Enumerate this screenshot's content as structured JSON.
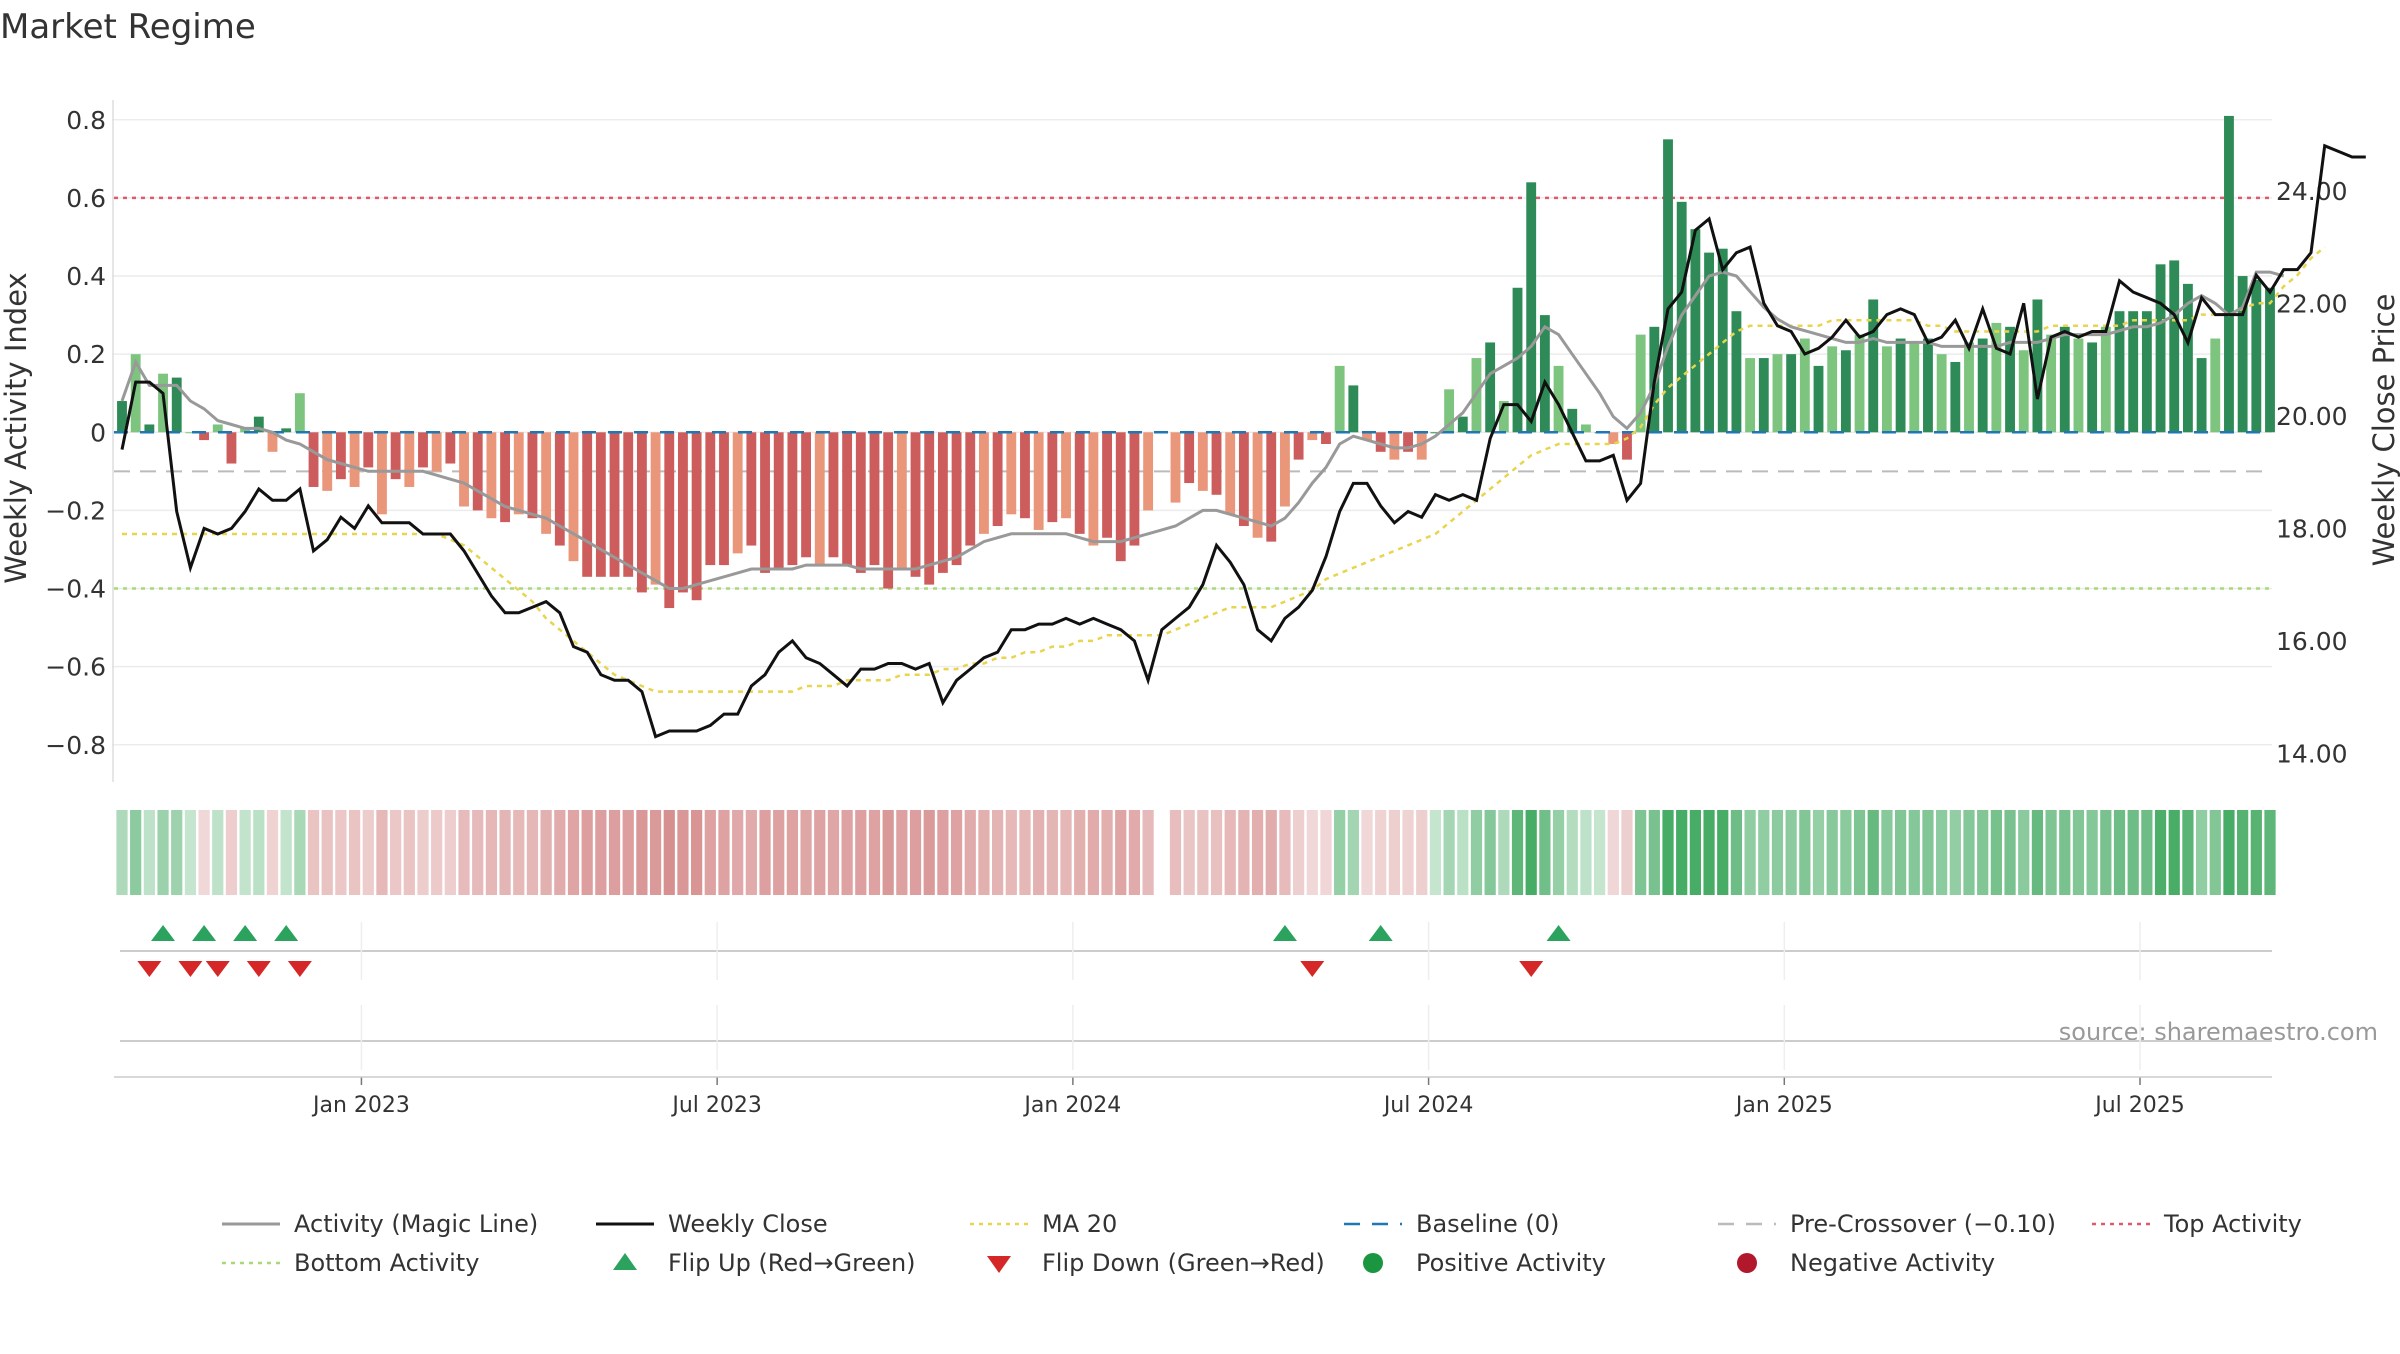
{
  "chart_data": {
    "type": "bar",
    "title": "Market Regime",
    "source": "source: sharemaestro.com",
    "left_axis": {
      "label": "Weekly Activity Index",
      "ylim": [
        -0.88,
        0.82
      ],
      "ticks": [
        0.8,
        0.6,
        0.4,
        0.2,
        0,
        -0.2,
        -0.4,
        -0.6,
        -0.8
      ],
      "tick_labels": [
        "0.8",
        "0.6",
        "0.4",
        "0.2",
        "0",
        "−0.2",
        "−0.4",
        "−0.6",
        "−0.8"
      ]
    },
    "right_axis": {
      "label": "Weekly Close Price",
      "ylim": [
        13.6,
        25.4
      ],
      "ticks": [
        24,
        22,
        20,
        18,
        16,
        14
      ],
      "tick_labels": [
        "24.00",
        "22.00",
        "20.00",
        "18.00",
        "16.00",
        "14.00"
      ]
    },
    "x_axis": {
      "ticks": [
        {
          "label": "Jan 2023",
          "week": 17.5
        },
        {
          "label": "Jul 2023",
          "week": 43.5
        },
        {
          "label": "Jan 2024",
          "week": 69.5
        },
        {
          "label": "Jul 2024",
          "week": 95.5
        },
        {
          "label": "Jan 2025",
          "week": 121.5
        },
        {
          "label": "Jul 2025",
          "week": 147.5
        }
      ]
    },
    "thresholds": {
      "baseline": 0,
      "pre_crossover": -0.1,
      "top": 0.6,
      "bottom": -0.4
    },
    "activity": [
      0.08,
      0.2,
      0.02,
      0.15,
      0.14,
      0.0,
      -0.02,
      0.02,
      -0.08,
      0.01,
      0.04,
      -0.05,
      0.01,
      0.1,
      -0.14,
      -0.15,
      -0.12,
      -0.14,
      -0.09,
      -0.21,
      -0.12,
      -0.14,
      -0.09,
      -0.1,
      -0.08,
      -0.19,
      -0.2,
      -0.22,
      -0.23,
      -0.21,
      -0.22,
      -0.26,
      -0.29,
      -0.33,
      -0.37,
      -0.37,
      -0.37,
      -0.37,
      -0.41,
      -0.39,
      -0.45,
      -0.41,
      -0.43,
      -0.34,
      -0.34,
      -0.31,
      -0.29,
      -0.36,
      -0.35,
      -0.34,
      -0.32,
      -0.34,
      -0.32,
      -0.34,
      -0.36,
      -0.34,
      -0.4,
      -0.35,
      -0.37,
      -0.39,
      -0.36,
      -0.34,
      -0.29,
      -0.26,
      -0.24,
      -0.21,
      -0.22,
      -0.25,
      -0.23,
      -0.22,
      -0.26,
      -0.29,
      -0.27,
      -0.33,
      -0.29,
      -0.2,
      null,
      -0.18,
      -0.13,
      -0.15,
      -0.16,
      -0.21,
      -0.24,
      -0.27,
      -0.28,
      -0.19,
      -0.07,
      -0.02,
      -0.03,
      0.17,
      0.12,
      -0.02,
      -0.05,
      -0.07,
      -0.05,
      -0.07,
      0.0,
      0.11,
      0.04,
      0.19,
      0.23,
      0.08,
      0.37,
      0.64,
      0.3,
      0.17,
      0.06,
      0.02,
      0.0,
      -0.03,
      -0.07,
      0.25,
      0.27,
      0.75,
      0.59,
      0.52,
      0.46,
      0.47,
      0.31,
      0.19,
      0.19,
      0.2,
      0.2,
      0.24,
      0.17,
      0.22,
      0.21,
      0.25,
      0.34,
      0.22,
      0.24,
      0.23,
      0.24,
      0.2,
      0.18,
      0.23,
      0.24,
      0.28,
      0.27,
      0.21,
      0.34,
      0.25,
      0.27,
      0.24,
      0.23,
      0.27,
      0.31,
      0.31,
      0.31,
      0.43,
      0.44,
      0.38,
      0.19,
      0.24,
      0.81,
      0.4,
      0.39,
      0.37
    ],
    "magic_line": [
      0.08,
      0.18,
      0.12,
      0.12,
      0.12,
      0.08,
      0.06,
      0.03,
      0.02,
      0.01,
      0.01,
      0.0,
      -0.02,
      -0.03,
      -0.05,
      -0.07,
      -0.08,
      -0.09,
      -0.1,
      -0.1,
      -0.1,
      -0.1,
      -0.1,
      -0.11,
      -0.12,
      -0.13,
      -0.15,
      -0.17,
      -0.19,
      -0.2,
      -0.21,
      -0.22,
      -0.24,
      -0.26,
      -0.28,
      -0.3,
      -0.32,
      -0.34,
      -0.36,
      -0.38,
      -0.4,
      -0.4,
      -0.39,
      -0.38,
      -0.37,
      -0.36,
      -0.35,
      -0.35,
      -0.35,
      -0.35,
      -0.34,
      -0.34,
      -0.34,
      -0.34,
      -0.35,
      -0.35,
      -0.35,
      -0.35,
      -0.35,
      -0.34,
      -0.33,
      -0.32,
      -0.3,
      -0.28,
      -0.27,
      -0.26,
      -0.26,
      -0.26,
      -0.26,
      -0.26,
      -0.27,
      -0.28,
      -0.28,
      -0.28,
      -0.27,
      -0.26,
      -0.25,
      -0.24,
      -0.22,
      -0.2,
      -0.2,
      -0.21,
      -0.22,
      -0.23,
      -0.24,
      -0.22,
      -0.18,
      -0.13,
      -0.09,
      -0.03,
      -0.01,
      -0.02,
      -0.03,
      -0.04,
      -0.04,
      -0.03,
      -0.01,
      0.02,
      0.05,
      0.1,
      0.15,
      0.17,
      0.19,
      0.22,
      0.27,
      0.25,
      0.2,
      0.15,
      0.1,
      0.04,
      0.01,
      0.05,
      0.12,
      0.22,
      0.3,
      0.35,
      0.4,
      0.41,
      0.4,
      0.36,
      0.32,
      0.29,
      0.27,
      0.26,
      0.25,
      0.24,
      0.23,
      0.23,
      0.24,
      0.23,
      0.23,
      0.23,
      0.23,
      0.22,
      0.22,
      0.22,
      0.22,
      0.22,
      0.23,
      0.23,
      0.23,
      0.24,
      0.25,
      0.25,
      0.25,
      0.25,
      0.26,
      0.27,
      0.27,
      0.28,
      0.3,
      0.33,
      0.35,
      0.33,
      0.3,
      0.32,
      0.41,
      0.41,
      0.4
    ],
    "close": [
      19.4,
      20.6,
      20.6,
      20.4,
      18.3,
      17.3,
      18.0,
      17.9,
      18.0,
      18.3,
      18.7,
      18.5,
      18.5,
      18.7,
      17.6,
      17.8,
      18.2,
      18.0,
      18.4,
      18.1,
      18.1,
      18.1,
      17.9,
      17.9,
      17.9,
      17.6,
      17.2,
      16.8,
      16.5,
      16.5,
      16.6,
      16.7,
      16.5,
      15.9,
      15.8,
      15.4,
      15.3,
      15.3,
      15.1,
      14.3,
      14.4,
      14.4,
      14.4,
      14.5,
      14.7,
      14.7,
      15.2,
      15.4,
      15.8,
      16.0,
      15.7,
      15.6,
      15.4,
      15.2,
      15.5,
      15.5,
      15.6,
      15.6,
      15.5,
      15.6,
      14.9,
      15.3,
      15.5,
      15.7,
      15.8,
      16.2,
      16.2,
      16.3,
      16.3,
      16.4,
      16.3,
      16.4,
      16.3,
      16.2,
      16.0,
      15.3,
      16.2,
      16.4,
      16.6,
      17.0,
      17.7,
      17.4,
      17.0,
      16.2,
      16.0,
      16.4,
      16.6,
      16.9,
      17.5,
      18.3,
      18.8,
      18.8,
      18.4,
      18.1,
      18.3,
      18.2,
      18.6,
      18.5,
      18.6,
      18.5,
      19.6,
      20.2,
      20.2,
      19.9,
      20.6,
      20.2,
      19.7,
      19.2,
      19.2,
      19.3,
      18.5,
      18.8,
      20.6,
      21.9,
      22.2,
      23.3,
      23.5,
      22.6,
      22.9,
      23.0,
      22.0,
      21.6,
      21.5,
      21.1,
      21.2,
      21.4,
      21.7,
      21.4,
      21.5,
      21.8,
      21.9,
      21.8,
      21.3,
      21.4,
      21.7,
      21.2,
      21.9,
      21.2,
      21.1,
      22.0,
      20.3,
      21.4,
      21.5,
      21.4,
      21.5,
      21.5,
      22.4,
      22.2,
      22.1,
      22.0,
      21.8,
      21.3,
      22.1,
      21.8,
      21.8,
      21.8,
      22.5,
      22.2,
      22.6,
      22.6,
      22.9,
      24.8,
      24.7,
      24.6,
      24.6
    ],
    "ma20": [
      17.9,
      17.9,
      17.9,
      17.9,
      17.9,
      17.9,
      17.9,
      17.9,
      17.9,
      17.9,
      17.9,
      17.9,
      17.9,
      17.9,
      17.9,
      17.9,
      17.9,
      17.9,
      17.9,
      17.9,
      17.9,
      17.9,
      17.9,
      17.9,
      17.8,
      17.7,
      17.5,
      17.3,
      17.1,
      16.9,
      16.7,
      16.4,
      16.2,
      16.0,
      15.8,
      15.6,
      15.4,
      15.3,
      15.2,
      15.1,
      15.1,
      15.1,
      15.1,
      15.1,
      15.1,
      15.1,
      15.1,
      15.1,
      15.1,
      15.1,
      15.2,
      15.2,
      15.2,
      15.3,
      15.3,
      15.3,
      15.3,
      15.4,
      15.4,
      15.4,
      15.5,
      15.5,
      15.6,
      15.6,
      15.7,
      15.7,
      15.8,
      15.8,
      15.9,
      15.9,
      16.0,
      16.0,
      16.1,
      16.1,
      16.1,
      16.1,
      16.1,
      16.2,
      16.3,
      16.4,
      16.5,
      16.6,
      16.6,
      16.6,
      16.6,
      16.7,
      16.8,
      16.9,
      17.1,
      17.2,
      17.3,
      17.4,
      17.5,
      17.6,
      17.7,
      17.8,
      17.9,
      18.1,
      18.3,
      18.5,
      18.7,
      18.9,
      19.1,
      19.3,
      19.4,
      19.5,
      19.5,
      19.5,
      19.5,
      19.5,
      19.6,
      19.8,
      20.2,
      20.5,
      20.7,
      20.9,
      21.1,
      21.3,
      21.5,
      21.6,
      21.6,
      21.6,
      21.6,
      21.6,
      21.6,
      21.7,
      21.7,
      21.7,
      21.7,
      21.7,
      21.7,
      21.7,
      21.6,
      21.6,
      21.5,
      21.5,
      21.5,
      21.5,
      21.5,
      21.5,
      21.5,
      21.6,
      21.6,
      21.6,
      21.6,
      21.6,
      21.6,
      21.7,
      21.7,
      21.7,
      21.7,
      21.7,
      21.8,
      21.8,
      21.8,
      21.9,
      22.0,
      22.0,
      22.3,
      22.5,
      22.8,
      23.0
    ],
    "flips_up": [
      3,
      6,
      9,
      12,
      85,
      92,
      105
    ],
    "flips_down": [
      2,
      5,
      7,
      10,
      13,
      87,
      103
    ],
    "legend": [
      {
        "label": "Activity (Magic Line)",
        "color": "#999999",
        "style": "line"
      },
      {
        "label": "Weekly Close",
        "color": "#111111",
        "style": "line"
      },
      {
        "label": "MA 20",
        "color": "#e8d44d",
        "style": "dotted"
      },
      {
        "label": "Baseline (0)",
        "color": "#1f77b4",
        "style": "dashed"
      },
      {
        "label": "Pre-Crossover (−0.10)",
        "color": "#bbbbbb",
        "style": "dashed"
      },
      {
        "label": "Top Activity",
        "color": "#e05a6a",
        "style": "dotted"
      },
      {
        "label": "Bottom Activity",
        "color": "#a8d878",
        "style": "dotted"
      },
      {
        "label": "Flip Up (Red→Green)",
        "color": "#2ca25f",
        "style": "triangle-up"
      },
      {
        "label": "Flip Down (Green→Red)",
        "color": "#d62728",
        "style": "triangle-down"
      },
      {
        "label": "Positive Activity",
        "color": "#1a9641",
        "style": "circle"
      },
      {
        "label": "Negative Activity",
        "color": "#b2182b",
        "style": "circle"
      }
    ]
  },
  "colors": {
    "pos_strong": "#2e8b57",
    "pos_light": "#7dc47f",
    "neg_strong": "#cd5c5c",
    "neg_light": "#e9967a",
    "magic_line": "#999999",
    "close_line": "#111111",
    "ma20": "#e8d44d",
    "baseline": "#1f77b4",
    "pre_crossover": "#bbbbbb",
    "top": "#e05a6a",
    "bottom": "#a8d878",
    "flip_up": "#2ca25f",
    "flip_down": "#d62728"
  }
}
